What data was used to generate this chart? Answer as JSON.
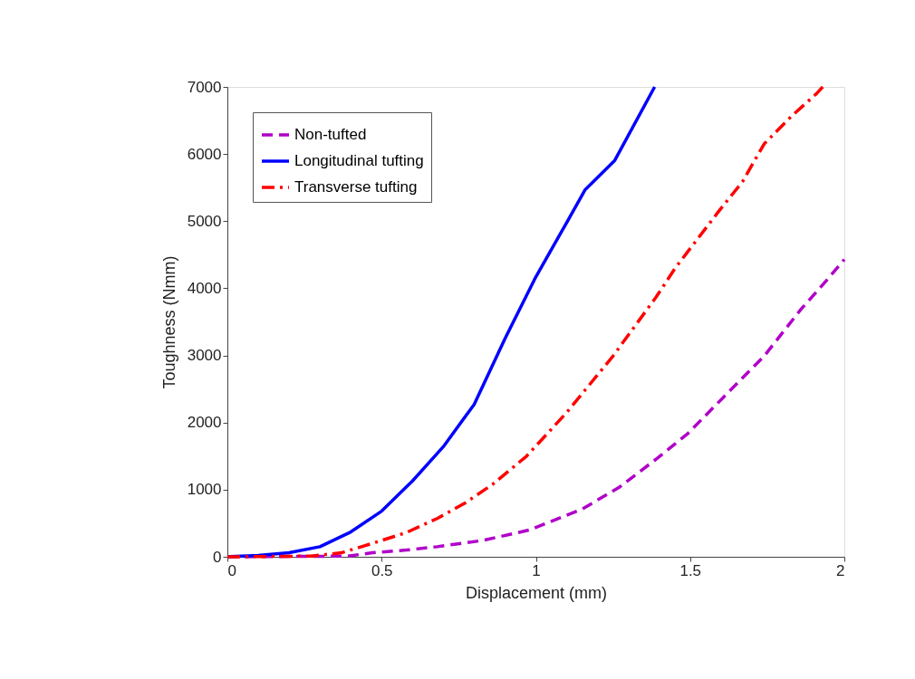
{
  "chart_data": {
    "type": "line",
    "xlabel": "Displacement (mm)",
    "ylabel": "Toughness (Nmm)",
    "xlim": [
      0,
      2
    ],
    "xticks": [
      0,
      0.5,
      1,
      1.5,
      2
    ],
    "ylim": [
      0,
      7000
    ],
    "yticks": [
      0,
      1000,
      2000,
      3000,
      4000,
      5000,
      6000,
      7000
    ],
    "grid": false,
    "legend": "top left",
    "series": [
      {
        "name": "Non-tufted",
        "color": "#b000c8",
        "line_style": "dashed",
        "x": [
          0,
          0.39,
          0.47,
          0.58,
          0.68,
          0.83,
          0.98,
          1.15,
          1.27,
          1.39,
          1.49,
          1.61,
          1.74,
          1.86,
          1.94,
          2.0
        ],
        "values": [
          0,
          10,
          60,
          100,
          150,
          245,
          400,
          710,
          1035,
          1455,
          1825,
          2385,
          2990,
          3690,
          4105,
          4430
        ]
      },
      {
        "name": "Longitudinal tufting",
        "color": "#0000ff",
        "line_style": "solid",
        "x": [
          0,
          0.1,
          0.2,
          0.3,
          0.4,
          0.5,
          0.6,
          0.7,
          0.8,
          0.9,
          1.0,
          1.1,
          1.16,
          1.255,
          1.385
        ],
        "values": [
          0,
          20,
          60,
          150,
          370,
          680,
          1130,
          1640,
          2270,
          3250,
          4170,
          4980,
          5470,
          5900,
          7000
        ]
      },
      {
        "name": "Transverse tufting",
        "color": "#ff0000",
        "line_style": "dashdot",
        "x": [
          0,
          0.27,
          0.37,
          0.47,
          0.58,
          0.68,
          0.77,
          0.86,
          0.97,
          1.1,
          1.25,
          1.39,
          1.45,
          1.59,
          1.67,
          1.74,
          1.83,
          1.91,
          1.93
        ],
        "values": [
          0,
          10,
          60,
          200,
          360,
          570,
          800,
          1080,
          1500,
          2150,
          2990,
          3870,
          4290,
          5130,
          5590,
          6150,
          6570,
          6900,
          7000
        ]
      }
    ]
  }
}
